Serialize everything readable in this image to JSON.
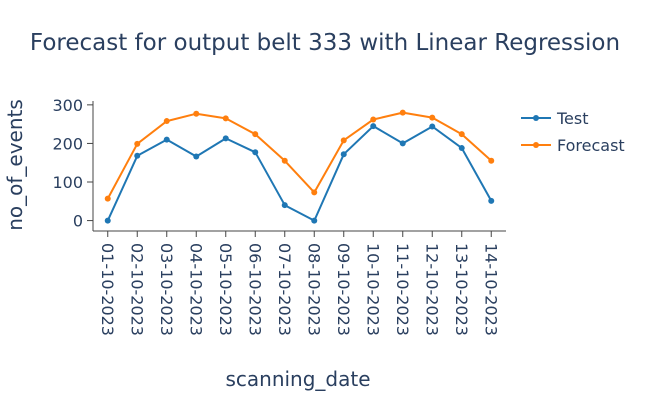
{
  "chart_data": {
    "type": "line",
    "title": "Forecast for output belt 333 with Linear Regression",
    "xlabel": "scanning_date",
    "ylabel": "no_of_events",
    "x": [
      "01-10-2023",
      "02-10-2023",
      "03-10-2023",
      "04-10-2023",
      "05-10-2023",
      "06-10-2023",
      "07-10-2023",
      "08-10-2023",
      "09-10-2023",
      "10-10-2023",
      "11-10-2023",
      "12-10-2023",
      "13-10-2023",
      "14-10-2023"
    ],
    "ylim": [
      -27,
      310
    ],
    "yticks": [
      0,
      100,
      200,
      300
    ],
    "series": [
      {
        "name": "Test",
        "color": "#1f77b4",
        "values": [
          0,
          168,
          210,
          166,
          213,
          177,
          40,
          0,
          172,
          245,
          200,
          244,
          188,
          51
        ]
      },
      {
        "name": "Forecast",
        "color": "#ff7f0e",
        "values": [
          57,
          199,
          258,
          277,
          265,
          224,
          155,
          73,
          208,
          262,
          280,
          267,
          224,
          155
        ]
      }
    ],
    "legend": "right",
    "grid": false
  }
}
